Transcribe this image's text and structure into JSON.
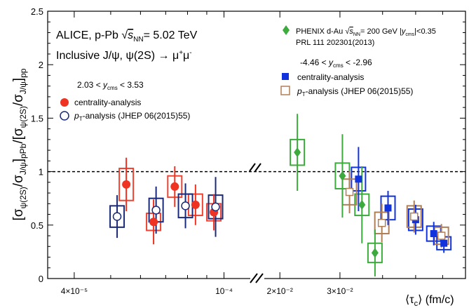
{
  "chart_data": {
    "type": "scatter",
    "title": "",
    "xlabel": "⟨τc⟩ (fm/c)",
    "ylabel": "[σψ(2S)/σJ/ψ]pPb/[σψ(2S)/σJ/ψ]pp",
    "ylim": [
      0,
      2.5
    ],
    "yticks": [
      "0",
      "0.5",
      "1",
      "1.5",
      "2",
      "2.5"
    ],
    "reference_line": 1,
    "panels": [
      {
        "name": "left",
        "xscale": "log",
        "xlim": [
          3.4e-05,
          0.00012
        ],
        "xticks": [
          {
            "value": 4e-05,
            "label": "4×10⁻⁵"
          },
          {
            "value": 0.0001,
            "label": "10⁻⁴"
          }
        ]
      },
      {
        "name": "right",
        "xscale": "log",
        "xlim": [
          0.0175,
          0.07
        ],
        "xticks": [
          {
            "value": 0.02,
            "label": "2×10⁻²"
          },
          {
            "value": 0.03,
            "label": "3×10⁻²"
          }
        ]
      }
    ],
    "annotations": {
      "experiment": "ALICE, p-Pb √sNN= 5.02 TeV",
      "process": "Inclusive J/ψ, ψ(2S) → μ⁺μ⁻",
      "fwd_range": "2.03 < ycms < 3.53",
      "bwd_range": "-4.46 < ycms < -2.96",
      "phenix_ref": "PRL 111 202301(2013)"
    },
    "series": [
      {
        "name": "centrality-analysis",
        "panel": "left",
        "marker": "circle-filled",
        "color": "#ee3322",
        "box_color": "#ee4433",
        "points": [
          {
            "x": 5.5e-05,
            "y": 0.88,
            "err": 0.25,
            "sys": 0.15
          },
          {
            "x": 6.5e-05,
            "y": 0.53,
            "err": 0.21,
            "sys": 0.08
          },
          {
            "x": 7.4e-05,
            "y": 0.86,
            "err": 0.19,
            "sys": 0.1
          },
          {
            "x": 8.4e-05,
            "y": 0.69,
            "err": 0.19,
            "sys": 0.1
          },
          {
            "x": 9.4e-05,
            "y": 0.62,
            "err": 0.17,
            "sys": 0.08
          }
        ]
      },
      {
        "name": "pT-analysis (JHEP 06(2015)55)",
        "panel": "left",
        "marker": "circle-open",
        "color": "#1a2a7a",
        "box_color": "#1a2a7a",
        "points": [
          {
            "x": 5.2e-05,
            "y": 0.58,
            "err": 0.2,
            "sys": 0.1
          },
          {
            "x": 6.6e-05,
            "y": 0.64,
            "err": 0.22,
            "sys": 0.11
          },
          {
            "x": 7.9e-05,
            "y": 0.68,
            "err": 0.21,
            "sys": 0.11
          },
          {
            "x": 9.5e-05,
            "y": 0.67,
            "err": 0.28,
            "sys": 0.11
          }
        ]
      },
      {
        "name": "PHENIX d-Au √sNN= 200 GeV |ycms|<0.35",
        "panel": "right",
        "marker": "diamond-filled",
        "color": "#3daa3d",
        "box_color": "#3daa3d",
        "points": [
          {
            "x": 0.0225,
            "y": 1.18,
            "err": 0.36,
            "sys": 0.12
          },
          {
            "x": 0.0305,
            "y": 0.96,
            "err": 0.39,
            "sys": 0.12
          },
          {
            "x": 0.0348,
            "y": 0.69,
            "err": 0.36,
            "sys": 0.1
          },
          {
            "x": 0.038,
            "y": 0.24,
            "err": 0.22,
            "sys": 0.09
          }
        ]
      },
      {
        "name": "centrality-analysis",
        "panel": "right",
        "marker": "square-filled",
        "color": "#1133dd",
        "box_color": "#1133dd",
        "points": [
          {
            "x": 0.034,
            "y": 0.93,
            "err": 0.3,
            "sys": 0.11
          },
          {
            "x": 0.0415,
            "y": 0.66,
            "err": 0.16,
            "sys": 0.11
          },
          {
            "x": 0.05,
            "y": 0.55,
            "err": 0.14,
            "sys": 0.1
          },
          {
            "x": 0.0565,
            "y": 0.42,
            "err": 0.11,
            "sys": 0.07
          },
          {
            "x": 0.0605,
            "y": 0.33,
            "err": 0.09,
            "sys": 0.06
          }
        ]
      },
      {
        "name": "pT-analysis (JHEP 06(2015)55)",
        "panel": "right",
        "marker": "square-open",
        "color": "#b07f55",
        "box_color": "#b07f55",
        "points": [
          {
            "x": 0.032,
            "y": 0.81,
            "err": 0.2,
            "sys": 0.12
          },
          {
            "x": 0.0398,
            "y": 0.52,
            "err": 0.18,
            "sys": 0.1
          },
          {
            "x": 0.0495,
            "y": 0.58,
            "err": 0.15,
            "sys": 0.1
          },
          {
            "x": 0.0595,
            "y": 0.4,
            "err": 0.11,
            "sys": 0.08
          }
        ]
      }
    ]
  }
}
